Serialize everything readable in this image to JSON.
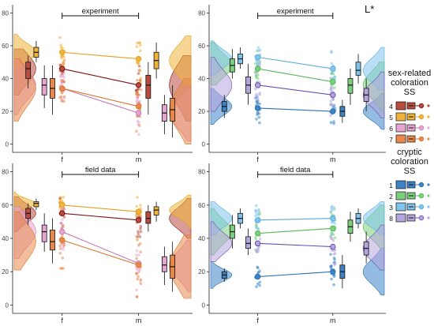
{
  "figure_label": "L*",
  "legend": {
    "groups": [
      {
        "title_lines": [
          "sex-related",
          "coloration",
          "SS"
        ],
        "items": [
          {
            "label": "4",
            "fill": "#b94b3f",
            "line": "#7a1010"
          },
          {
            "label": "5",
            "fill": "#f0b43a",
            "line": "#e0a020"
          },
          {
            "label": "6",
            "fill": "#e7a6d2",
            "line": "#c779b4"
          },
          {
            "label": "7",
            "fill": "#e8894a",
            "line": "#d9772d"
          }
        ]
      },
      {
        "title_lines": [
          "cryptic",
          "coloration",
          "SS"
        ],
        "items": [
          {
            "label": "1",
            "fill": "#3d84c6",
            "line": "#2c6fb0"
          },
          {
            "label": "2",
            "fill": "#7ccf7c",
            "line": "#56b656"
          },
          {
            "label": "3",
            "fill": "#7fc4ec",
            "line": "#5aaedc"
          },
          {
            "label": "8",
            "fill": "#b4a6dc",
            "line": "#6a4fae"
          }
        ]
      }
    ]
  },
  "chart_data": [
    {
      "type": "raincloud",
      "panel": "top-left",
      "annotation": "experiment",
      "categories": [
        "f",
        "m"
      ],
      "ylim": [
        -5,
        85
      ],
      "yticks": [
        0,
        20,
        40,
        60,
        80
      ],
      "grid": false,
      "series": [
        {
          "name": "4",
          "color": "#b94b3f",
          "line": "#7a1010",
          "f": {
            "q1": 40,
            "median": 46,
            "q3": 50,
            "min": 34,
            "max": 54,
            "mean": 46
          },
          "m": {
            "q1": 28,
            "median": 36,
            "q3": 42,
            "min": 18,
            "max": 50,
            "mean": 36
          }
        },
        {
          "name": "5",
          "color": "#f0b43a",
          "line": "#e0a020",
          "f": {
            "q1": 53,
            "median": 56,
            "q3": 59,
            "min": 50,
            "max": 63,
            "mean": 56
          },
          "m": {
            "q1": 46,
            "median": 51,
            "q3": 56,
            "min": 40,
            "max": 62,
            "mean": 52
          }
        },
        {
          "name": "6",
          "color": "#e7a6d2",
          "line": "#c779b4",
          "f": {
            "q1": 30,
            "median": 36,
            "q3": 40,
            "min": 22,
            "max": 48,
            "mean": 34
          },
          "m": {
            "q1": 14,
            "median": 19,
            "q3": 24,
            "min": 6,
            "max": 30,
            "mean": 19
          }
        },
        {
          "name": "7",
          "color": "#e8894a",
          "line": "#d9772d",
          "f": {
            "q1": 28,
            "median": 34,
            "q3": 40,
            "min": 18,
            "max": 48,
            "mean": 34
          },
          "m": {
            "q1": 14,
            "median": 21,
            "q3": 28,
            "min": 4,
            "max": 36,
            "mean": 23
          }
        }
      ]
    },
    {
      "type": "raincloud",
      "panel": "top-right",
      "annotation": "experiment",
      "categories": [
        "f",
        "m"
      ],
      "ylim": [
        -5,
        85
      ],
      "yticks": [
        0,
        20,
        40,
        60,
        80
      ],
      "grid": false,
      "series": [
        {
          "name": "1",
          "color": "#3d84c6",
          "line": "#2c6fb0",
          "f": {
            "q1": 20,
            "median": 23,
            "q3": 26,
            "min": 16,
            "max": 30,
            "mean": 22
          },
          "m": {
            "q1": 17,
            "median": 20,
            "q3": 23,
            "min": 13,
            "max": 27,
            "mean": 20
          }
        },
        {
          "name": "2",
          "color": "#7ccf7c",
          "line": "#56b656",
          "f": {
            "q1": 44,
            "median": 48,
            "q3": 52,
            "min": 40,
            "max": 58,
            "mean": 46
          },
          "m": {
            "q1": 31,
            "median": 36,
            "q3": 40,
            "min": 24,
            "max": 46,
            "mean": 38
          }
        },
        {
          "name": "3",
          "color": "#7fc4ec",
          "line": "#5aaedc",
          "f": {
            "q1": 49,
            "median": 52,
            "q3": 55,
            "min": 46,
            "max": 59,
            "mean": 53
          },
          "m": {
            "q1": 42,
            "median": 45,
            "q3": 50,
            "min": 37,
            "max": 55,
            "mean": 46
          }
        },
        {
          "name": "8",
          "color": "#b4a6dc",
          "line": "#6a4fae",
          "f": {
            "q1": 31,
            "median": 36,
            "q3": 41,
            "min": 24,
            "max": 49,
            "mean": 36
          },
          "m": {
            "q1": 26,
            "median": 30,
            "q3": 34,
            "min": 20,
            "max": 40,
            "mean": 30
          }
        }
      ]
    },
    {
      "type": "raincloud",
      "panel": "bottom-left",
      "annotation": "field data",
      "categories": [
        "f",
        "m"
      ],
      "ylim": [
        -5,
        85
      ],
      "yticks": [
        0,
        20,
        40,
        60,
        80
      ],
      "grid": false,
      "series": [
        {
          "name": "4",
          "color": "#b94b3f",
          "line": "#7a1010",
          "f": {
            "q1": 52,
            "median": 55,
            "q3": 58,
            "min": 48,
            "max": 61,
            "mean": 55
          },
          "m": {
            "q1": 49,
            "median": 52,
            "q3": 56,
            "min": 44,
            "max": 60,
            "mean": 51
          }
        },
        {
          "name": "5",
          "color": "#f0b43a",
          "line": "#e0a020",
          "f": {
            "q1": 59,
            "median": 61,
            "q3": 62,
            "min": 57,
            "max": 64,
            "mean": 60
          },
          "m": {
            "q1": 54,
            "median": 57,
            "q3": 59,
            "min": 50,
            "max": 62,
            "mean": 56
          }
        },
        {
          "name": "6",
          "color": "#e7a6d2",
          "line": "#c779b4",
          "f": {
            "q1": 38,
            "median": 44,
            "q3": 48,
            "min": 32,
            "max": 55,
            "mean": 44
          },
          "m": {
            "q1": 20,
            "median": 24,
            "q3": 29,
            "min": 12,
            "max": 35,
            "mean": 25
          }
        },
        {
          "name": "7",
          "color": "#e8894a",
          "line": "#d9772d",
          "f": {
            "q1": 33,
            "median": 38,
            "q3": 45,
            "min": 25,
            "max": 52,
            "mean": 39
          },
          "m": {
            "q1": 16,
            "median": 23,
            "q3": 30,
            "min": 8,
            "max": 38,
            "mean": 24
          }
        }
      ]
    },
    {
      "type": "raincloud",
      "panel": "bottom-right",
      "annotation": "field data",
      "categories": [
        "f",
        "m"
      ],
      "ylim": [
        -5,
        85
      ],
      "yticks": [
        0,
        20,
        40,
        60,
        80
      ],
      "grid": false,
      "series": [
        {
          "name": "1",
          "color": "#3d84c6",
          "line": "#2c6fb0",
          "f": {
            "q1": 16,
            "median": 18,
            "q3": 20,
            "min": 14,
            "max": 22,
            "mean": 17
          },
          "m": {
            "q1": 16,
            "median": 20,
            "q3": 24,
            "min": 10,
            "max": 30,
            "mean": 20
          }
        },
        {
          "name": "2",
          "color": "#7ccf7c",
          "line": "#56b656",
          "f": {
            "q1": 40,
            "median": 44,
            "q3": 48,
            "min": 34,
            "max": 54,
            "mean": 43
          },
          "m": {
            "q1": 43,
            "median": 47,
            "q3": 51,
            "min": 38,
            "max": 56,
            "mean": 46
          }
        },
        {
          "name": "3",
          "color": "#7fc4ec",
          "line": "#5aaedc",
          "f": {
            "q1": 49,
            "median": 52,
            "q3": 55,
            "min": 46,
            "max": 58,
            "mean": 51
          },
          "m": {
            "q1": 49,
            "median": 52,
            "q3": 55,
            "min": 46,
            "max": 58,
            "mean": 52
          }
        },
        {
          "name": "8",
          "color": "#b4a6dc",
          "line": "#6a4fae",
          "f": {
            "q1": 34,
            "median": 37,
            "q3": 41,
            "min": 30,
            "max": 46,
            "mean": 37
          },
          "m": {
            "q1": 30,
            "median": 34,
            "q3": 38,
            "min": 25,
            "max": 44,
            "mean": 35
          }
        }
      ]
    }
  ]
}
